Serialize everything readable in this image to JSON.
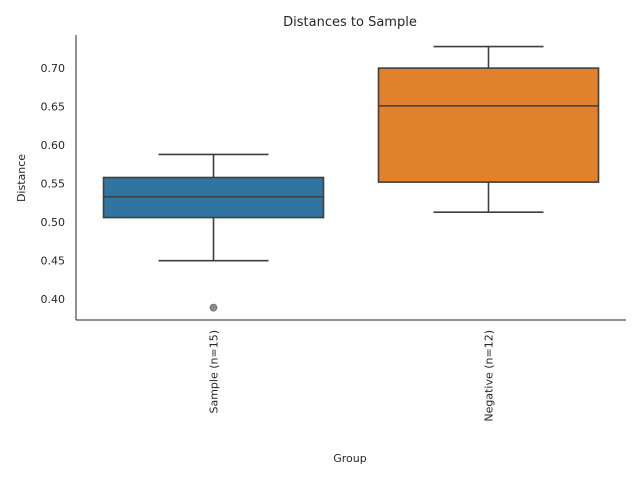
{
  "chart_data": {
    "type": "box",
    "title": "Distances to Sample",
    "xlabel": "Group",
    "ylabel": "Distance",
    "ylim": [
      0.373,
      0.743
    ],
    "yticks": [
      0.4,
      0.45,
      0.5,
      0.55,
      0.6,
      0.65,
      0.7
    ],
    "grid": false,
    "legend": "none",
    "series": [
      {
        "label": "Sample (n=15)",
        "color": "#3274a1",
        "whisker_low": 0.45,
        "q1": 0.506,
        "median": 0.533,
        "q3": 0.558,
        "whisker_high": 0.588,
        "outliers": [
          0.389
        ]
      },
      {
        "label": "Negative (n=12)",
        "color": "#e1812c",
        "whisker_low": 0.513,
        "q1": 0.552,
        "median": 0.651,
        "q3": 0.7,
        "whisker_high": 0.728,
        "outliers": []
      }
    ]
  }
}
